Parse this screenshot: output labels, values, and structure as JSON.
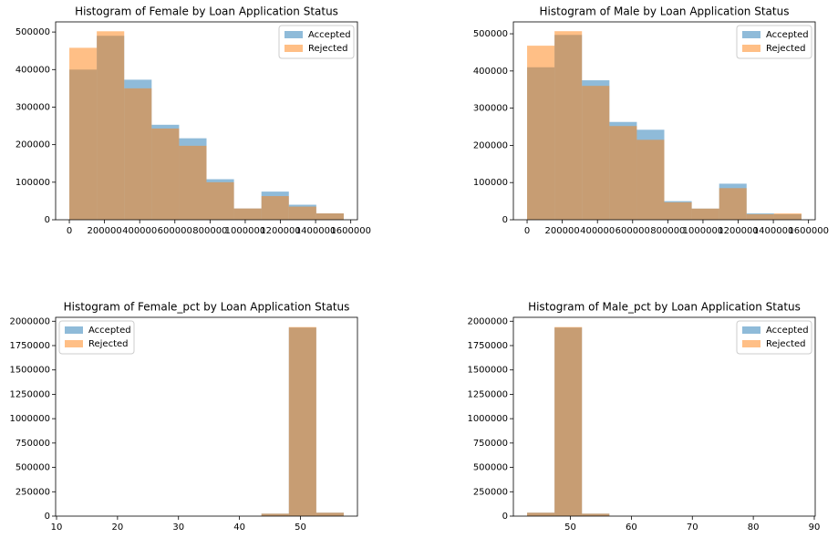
{
  "chart_data": [
    {
      "type": "histogram",
      "title": "Histogram of Female by Loan Application Status",
      "bins": [
        0,
        156000,
        312000,
        468000,
        624000,
        780000,
        936000,
        1092000,
        1248000,
        1404000,
        1560000
      ],
      "series": [
        {
          "name": "Accepted",
          "color": "#1f77b4",
          "values": [
            400000,
            490000,
            373000,
            253000,
            217000,
            108000,
            30000,
            75000,
            40000,
            17000
          ]
        },
        {
          "name": "Rejected",
          "color": "#ff7f0e",
          "values": [
            458000,
            502000,
            350000,
            243000,
            197000,
            100000,
            30000,
            63000,
            35000,
            17000
          ]
        }
      ],
      "xlim": [
        -78000,
        1638000
      ],
      "xticks": [
        0,
        200000,
        400000,
        600000,
        800000,
        1000000,
        1200000,
        1400000,
        1600000
      ],
      "ylim": [
        0,
        527000
      ],
      "yticks": [
        0,
        100000,
        200000,
        300000,
        400000,
        500000
      ],
      "legend": "upper right"
    },
    {
      "type": "histogram",
      "title": "Histogram of Male by Loan Application Status",
      "bins": [
        0,
        156000,
        312000,
        468000,
        624000,
        780000,
        936000,
        1092000,
        1248000,
        1404000,
        1560000
      ],
      "series": [
        {
          "name": "Accepted",
          "color": "#1f77b4",
          "values": [
            410000,
            497000,
            375000,
            263000,
            242000,
            50000,
            30000,
            97000,
            17000,
            15000
          ]
        },
        {
          "name": "Rejected",
          "color": "#ff7f0e",
          "values": [
            468000,
            507000,
            360000,
            252000,
            215000,
            47000,
            30000,
            85000,
            15000,
            17000
          ]
        }
      ],
      "xlim": [
        -78000,
        1638000
      ],
      "xticks": [
        0,
        200000,
        400000,
        600000,
        800000,
        1000000,
        1200000,
        1400000,
        1600000
      ],
      "ylim": [
        0,
        532000
      ],
      "yticks": [
        0,
        100000,
        200000,
        300000,
        400000,
        500000
      ],
      "legend": "upper right"
    },
    {
      "type": "histogram",
      "title": "Histogram of Female_pct by Loan Application Status",
      "bins": [
        12.1,
        16.6,
        21.1,
        25.6,
        30.1,
        34.6,
        39.1,
        43.6,
        48.1,
        52.6,
        57.1
      ],
      "series": [
        {
          "name": "Accepted",
          "color": "#1f77b4",
          "values": [
            0,
            0,
            0,
            0,
            0,
            0,
            0,
            25000,
            1935000,
            35000
          ]
        },
        {
          "name": "Rejected",
          "color": "#ff7f0e",
          "values": [
            0,
            0,
            0,
            0,
            0,
            0,
            0,
            25000,
            1940000,
            35000
          ]
        }
      ],
      "xlim": [
        9.85,
        59.35
      ],
      "xticks": [
        10,
        20,
        30,
        40,
        50
      ],
      "ylim": [
        0,
        2040000
      ],
      "yticks": [
        0,
        250000,
        500000,
        750000,
        1000000,
        1250000,
        1500000,
        1750000,
        2000000
      ],
      "legend": "upper left"
    },
    {
      "type": "histogram",
      "title": "Histogram of Male_pct by Loan Application Status",
      "bins": [
        42.9,
        47.4,
        51.9,
        56.4,
        60.9,
        65.4,
        69.9,
        74.4,
        78.9,
        83.4,
        87.9
      ],
      "series": [
        {
          "name": "Accepted",
          "color": "#1f77b4",
          "values": [
            35000,
            1935000,
            25000,
            0,
            0,
            0,
            0,
            0,
            0,
            0
          ]
        },
        {
          "name": "Rejected",
          "color": "#ff7f0e",
          "values": [
            35000,
            1940000,
            25000,
            0,
            0,
            0,
            0,
            0,
            0,
            0
          ]
        }
      ],
      "xlim": [
        40.65,
        90.15
      ],
      "xticks": [
        50,
        60,
        70,
        80,
        90
      ],
      "ylim": [
        0,
        2040000
      ],
      "yticks": [
        0,
        250000,
        500000,
        750000,
        1000000,
        1250000,
        1500000,
        1750000,
        2000000
      ],
      "legend": "upper right"
    }
  ]
}
